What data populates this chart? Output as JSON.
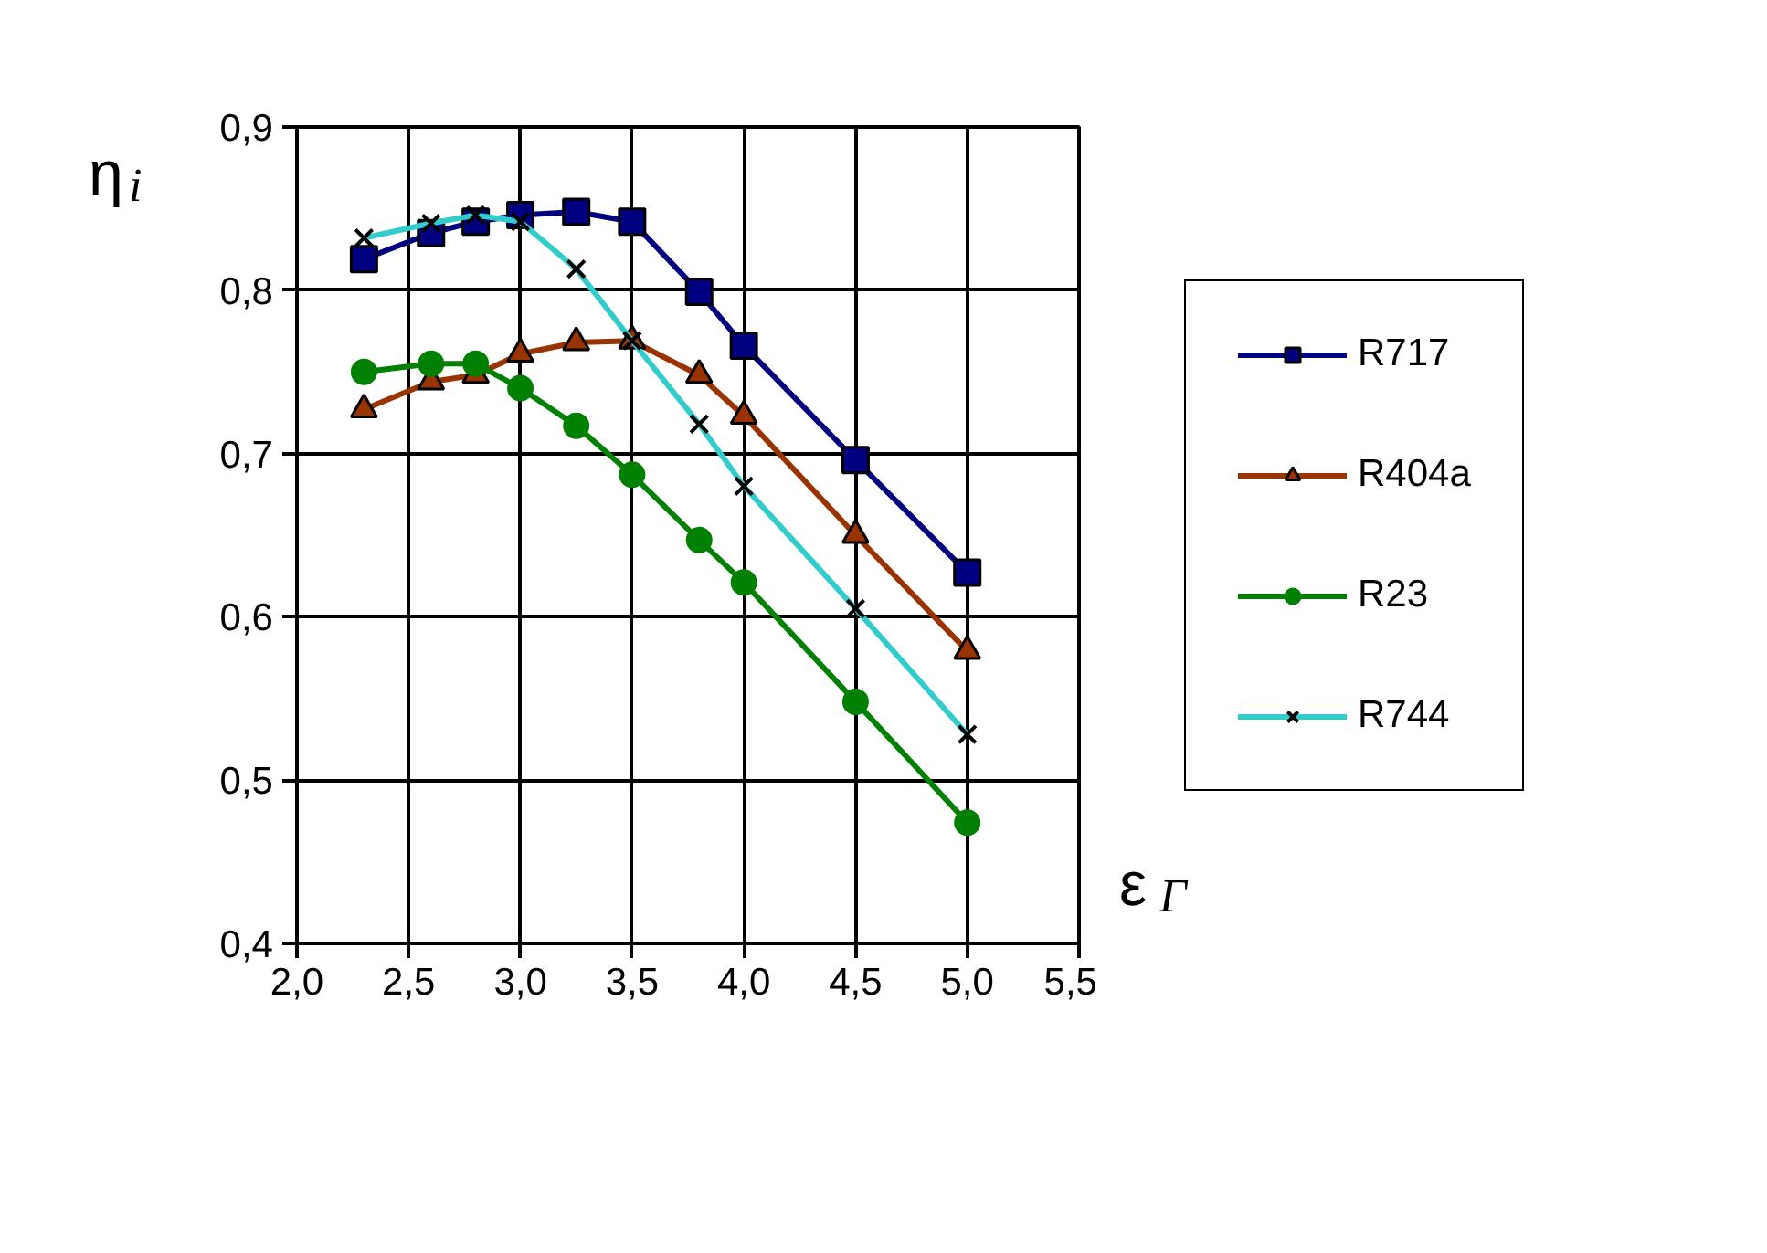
{
  "chart_data": {
    "type": "line",
    "xlabel": "ε$_{Γ}$",
    "ylabel": "η$_{i}$",
    "x": [
      2.3,
      2.6,
      2.8,
      3.0,
      3.25,
      3.5,
      3.8,
      4.0,
      4.5,
      5.0
    ],
    "series": [
      {
        "name": "R717",
        "color": "#000080",
        "marker": "square",
        "values": [
          0.819,
          0.835,
          0.842,
          0.846,
          0.848,
          0.842,
          0.799,
          0.766,
          0.696,
          0.627
        ]
      },
      {
        "name": "R404a",
        "color": "#993300",
        "marker": "triangle",
        "values": [
          0.727,
          0.744,
          0.748,
          0.761,
          0.768,
          0.769,
          0.748,
          0.723,
          0.65,
          0.579
        ]
      },
      {
        "name": "R23",
        "color": "#008000",
        "marker": "circle",
        "values": [
          0.75,
          0.755,
          0.755,
          0.74,
          0.717,
          0.687,
          0.647,
          0.621,
          0.548,
          0.474
        ]
      },
      {
        "name": "R744",
        "color": "#33cccc",
        "marker": "cross",
        "values": [
          0.832,
          0.841,
          0.846,
          0.842,
          0.813,
          0.769,
          0.718,
          0.68,
          0.605,
          0.528
        ]
      }
    ],
    "xlim": [
      2.0,
      5.5
    ],
    "xticks": [
      {
        "value": 2.0,
        "label": "2,0"
      },
      {
        "value": 2.5,
        "label": "2,5"
      },
      {
        "value": 3.0,
        "label": "3,0"
      },
      {
        "value": 3.5,
        "label": "3,5"
      },
      {
        "value": 4.0,
        "label": "4,0"
      },
      {
        "value": 4.5,
        "label": "4,5"
      },
      {
        "value": 5.0,
        "label": "5,0"
      },
      {
        "value": 5.5,
        "label": "5,5"
      }
    ],
    "ylim": [
      0.4,
      0.9
    ],
    "yticks": [
      {
        "value": 0.4,
        "label": "0,4"
      },
      {
        "value": 0.5,
        "label": "0,5"
      },
      {
        "value": 0.6,
        "label": "0,6"
      },
      {
        "value": 0.7,
        "label": "0,7"
      },
      {
        "value": 0.8,
        "label": "0,8"
      },
      {
        "value": 0.9,
        "label": "0,9"
      }
    ],
    "grid": true,
    "legend": "right"
  }
}
